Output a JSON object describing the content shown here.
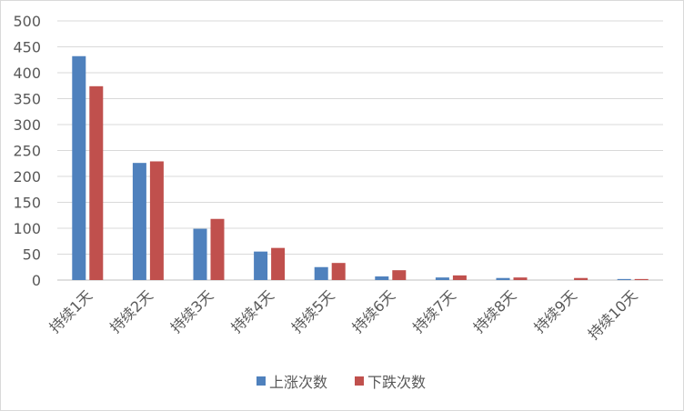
{
  "chart_data": {
    "type": "bar",
    "title": "",
    "xlabel": "",
    "ylabel": "",
    "ylim": [
      0,
      500
    ],
    "yticks": [
      0,
      50,
      100,
      150,
      200,
      250,
      300,
      350,
      400,
      450,
      500
    ],
    "grid": true,
    "legend_position": "bottom",
    "categories": [
      "持续1天",
      "持续2天",
      "持续3天",
      "持续4天",
      "持续5天",
      "持续6天",
      "持续7天",
      "持续8天",
      "持续9天",
      "持续10天"
    ],
    "series": [
      {
        "name": "上涨次数",
        "color": "#4f81bd",
        "values": [
          432,
          226,
          99,
          55,
          25,
          7,
          5,
          4,
          0,
          2
        ]
      },
      {
        "name": "下跌次数",
        "color": "#c0504d",
        "values": [
          374,
          229,
          118,
          62,
          33,
          19,
          9,
          5,
          4,
          2
        ]
      }
    ]
  }
}
